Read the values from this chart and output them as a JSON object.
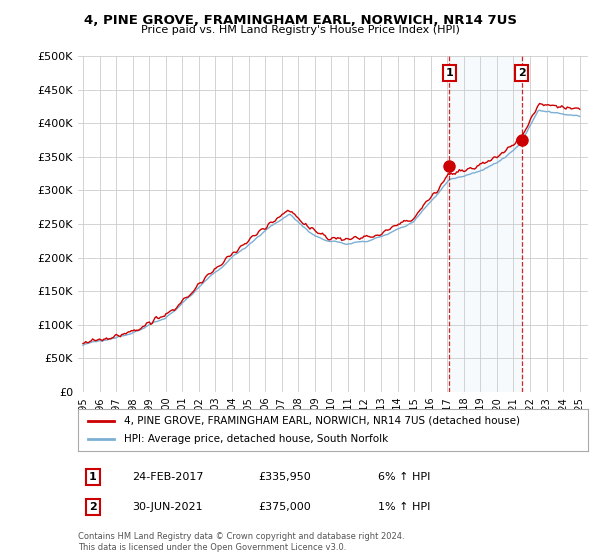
{
  "title": "4, PINE GROVE, FRAMINGHAM EARL, NORWICH, NR14 7US",
  "subtitle": "Price paid vs. HM Land Registry's House Price Index (HPI)",
  "legend_label1": "4, PINE GROVE, FRAMINGHAM EARL, NORWICH, NR14 7US (detached house)",
  "legend_label2": "HPI: Average price, detached house, South Norfolk",
  "annotation1_label": "1",
  "annotation1_date": "24-FEB-2017",
  "annotation1_price": "£335,950",
  "annotation1_hpi": "6% ↑ HPI",
  "annotation1_year": 2017.12,
  "annotation1_value": 335950,
  "annotation2_label": "2",
  "annotation2_date": "30-JUN-2021",
  "annotation2_price": "£375,000",
  "annotation2_hpi": "1% ↑ HPI",
  "annotation2_year": 2021.5,
  "annotation2_value": 375000,
  "footer": "Contains HM Land Registry data © Crown copyright and database right 2024.\nThis data is licensed under the Open Government Licence v3.0.",
  "line1_color": "#cc0000",
  "line2_color": "#7bafd4",
  "shade_color": "#d6e8f7",
  "annotation_box_color": "#cc0000",
  "background_color": "#ffffff",
  "grid_color": "#cccccc",
  "ylim": [
    0,
    500000
  ],
  "yticks": [
    0,
    50000,
    100000,
    150000,
    200000,
    250000,
    300000,
    350000,
    400000,
    450000,
    500000
  ],
  "ytick_labels": [
    "£0",
    "£50K",
    "£100K",
    "£150K",
    "£200K",
    "£250K",
    "£300K",
    "£350K",
    "£400K",
    "£450K",
    "£500K"
  ],
  "year_start": 1995,
  "year_end": 2025
}
